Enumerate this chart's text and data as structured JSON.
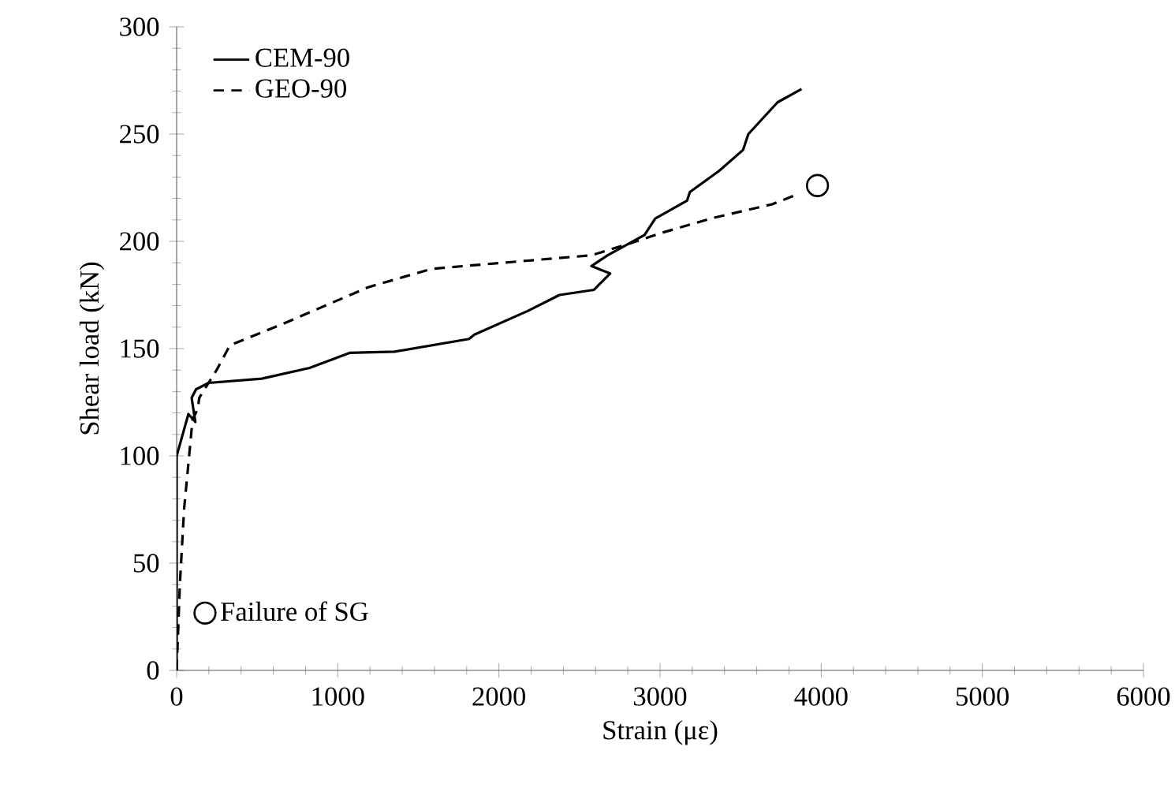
{
  "chart_data": {
    "type": "line",
    "xlabel": "Strain (με)",
    "ylabel": "Shear load (kN)",
    "xlim": [
      0,
      6000
    ],
    "ylim": [
      0,
      300
    ],
    "xticks": [
      0,
      1000,
      2000,
      3000,
      4000,
      5000,
      6000
    ],
    "yticks": [
      0,
      50,
      100,
      150,
      200,
      250,
      300
    ],
    "grid": false,
    "legend": "top left",
    "series": [
      {
        "name": "CEM-90",
        "line_style": "solid",
        "color": "#000000",
        "x": [
          0,
          0,
          73,
          116,
          93,
          120,
          198,
          528,
          825,
          1073,
          1353,
          1815,
          1848,
          2178,
          2376,
          2590,
          2690,
          2574,
          2673,
          2904,
          2970,
          3168,
          3185,
          3366,
          3515,
          3548,
          3729,
          3878
        ],
        "values": [
          0,
          100,
          119.5,
          115.8,
          127,
          131,
          134,
          136,
          141,
          148,
          148.6,
          154.5,
          156.5,
          167.5,
          175,
          177.4,
          185,
          188.5,
          193.4,
          203,
          210.6,
          219,
          223,
          232.8,
          242.6,
          250,
          264.8,
          271
        ]
      },
      {
        "name": "GEO-90",
        "line_style": "dashed",
        "color": "#000000",
        "x": [
          0,
          20,
          46,
          99,
          132,
          140,
          248,
          330,
          693,
          1188,
          1584,
          2178,
          2574,
          2838,
          3003,
          3333,
          3696,
          3845
        ],
        "values": [
          0,
          40,
          75,
          117,
          122,
          127,
          140,
          151.5,
          162.6,
          178.6,
          187.2,
          191,
          193.5,
          199.6,
          203.8,
          211,
          217.3,
          221.7
        ]
      },
      {
        "name": "Failure of SG",
        "type": "scatter",
        "marker": "circle",
        "color": "#000000",
        "x": [
          3977
        ],
        "values": [
          226
        ]
      }
    ]
  }
}
